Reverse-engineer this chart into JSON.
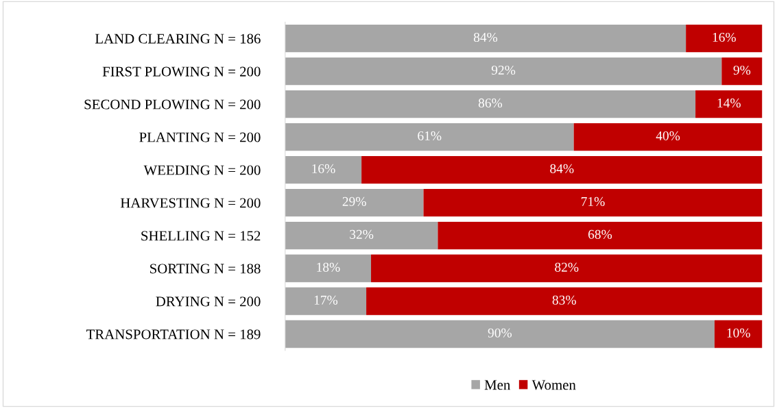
{
  "chart_data": {
    "type": "bar",
    "orientation": "horizontal",
    "stacked": true,
    "categories": [
      "LAND CLEARING N = 186",
      "FIRST PLOWING N = 200",
      "SECOND PLOWING N = 200",
      "PLANTING N = 200",
      "WEEDING N = 200",
      "HARVESTING N = 200",
      "SHELLING N = 152",
      "SORTING N = 188",
      "DRYING N = 200",
      "TRANSPORTATION N = 189"
    ],
    "series": [
      {
        "name": "Men",
        "color": "#a6a6a6",
        "values": [
          84,
          91.5,
          86,
          60.5,
          16,
          29,
          32,
          18,
          17,
          90
        ],
        "value_labels": [
          "84%",
          "92%",
          "86%",
          "61%",
          "16%",
          "29%",
          "32%",
          "18%",
          "17%",
          "90%"
        ]
      },
      {
        "name": "Women",
        "color": "#c00000",
        "values": [
          16,
          8.5,
          14,
          39.5,
          84,
          71,
          68,
          82,
          83,
          10
        ],
        "value_labels": [
          "16%",
          "9%",
          "14%",
          "40%",
          "84%",
          "71%",
          "68%",
          "82%",
          "83%",
          "10%"
        ]
      }
    ],
    "xlim": [
      0,
      100
    ],
    "tick_labels": "y",
    "legend": "bottom",
    "grid": false
  }
}
